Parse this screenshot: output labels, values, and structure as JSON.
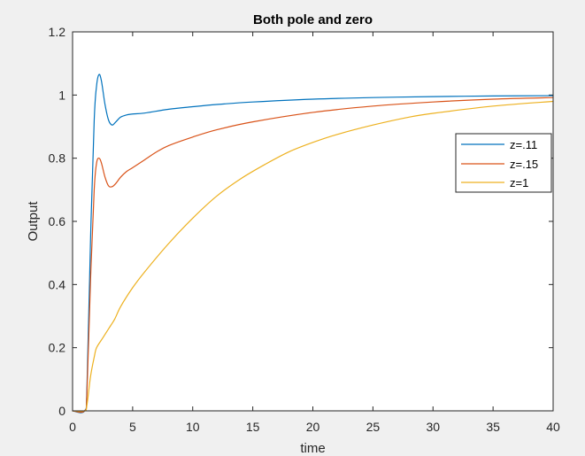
{
  "chart_data": {
    "type": "line",
    "title": "Both pole and zero",
    "xlabel": "time",
    "ylabel": "Output",
    "xlim": [
      0,
      40
    ],
    "ylim": [
      0,
      1.2
    ],
    "xticks": [
      0,
      5,
      10,
      15,
      20,
      25,
      30,
      35,
      40
    ],
    "yticks": [
      0,
      0.2,
      0.4,
      0.6,
      0.8,
      1,
      1.2
    ],
    "xtick_labels": [
      "0",
      "5",
      "10",
      "15",
      "20",
      "25",
      "30",
      "35",
      "40"
    ],
    "ytick_labels": [
      "0",
      "0.2",
      "0.4",
      "0.6",
      "0.8",
      "1",
      "1.2"
    ],
    "grid": false,
    "legend_position": "right",
    "series": [
      {
        "name": "z=.11",
        "color": "#0072bd",
        "x": [
          0,
          1,
          1.2,
          1.5,
          1.8,
          2.0,
          2.2,
          2.4,
          2.7,
          3.0,
          3.3,
          3.6,
          4.0,
          4.5,
          5.0,
          6.0,
          8.0,
          10,
          12,
          15,
          20,
          25,
          30,
          35,
          40
        ],
        "y": [
          0,
          0,
          0.08,
          0.55,
          0.92,
          1.03,
          1.065,
          1.045,
          0.97,
          0.92,
          0.905,
          0.915,
          0.93,
          0.937,
          0.94,
          0.943,
          0.955,
          0.963,
          0.97,
          0.978,
          0.987,
          0.992,
          0.995,
          0.997,
          0.998
        ]
      },
      {
        "name": "z=.15",
        "color": "#d95319",
        "x": [
          0,
          1,
          1.2,
          1.5,
          1.8,
          2.0,
          2.2,
          2.4,
          2.7,
          3.0,
          3.3,
          3.6,
          4.0,
          4.5,
          5.0,
          6.0,
          7.0,
          8.0,
          10,
          12,
          15,
          20,
          25,
          30,
          35,
          40
        ],
        "y": [
          0,
          0,
          0.06,
          0.42,
          0.7,
          0.785,
          0.8,
          0.785,
          0.74,
          0.712,
          0.71,
          0.72,
          0.74,
          0.758,
          0.77,
          0.795,
          0.82,
          0.84,
          0.867,
          0.89,
          0.915,
          0.945,
          0.965,
          0.978,
          0.987,
          0.992
        ]
      },
      {
        "name": "z=1",
        "color": "#edb120",
        "x": [
          0,
          1,
          1.2,
          1.5,
          1.8,
          2.0,
          2.5,
          3.0,
          3.5,
          4.0,
          5.0,
          6.0,
          8.0,
          10,
          12,
          14,
          16,
          18,
          20,
          22,
          25,
          28,
          30,
          35,
          40
        ],
        "y": [
          0,
          0,
          0.02,
          0.11,
          0.17,
          0.2,
          0.23,
          0.26,
          0.29,
          0.33,
          0.39,
          0.44,
          0.53,
          0.61,
          0.68,
          0.735,
          0.78,
          0.82,
          0.85,
          0.875,
          0.905,
          0.93,
          0.942,
          0.965,
          0.98
        ]
      }
    ]
  }
}
